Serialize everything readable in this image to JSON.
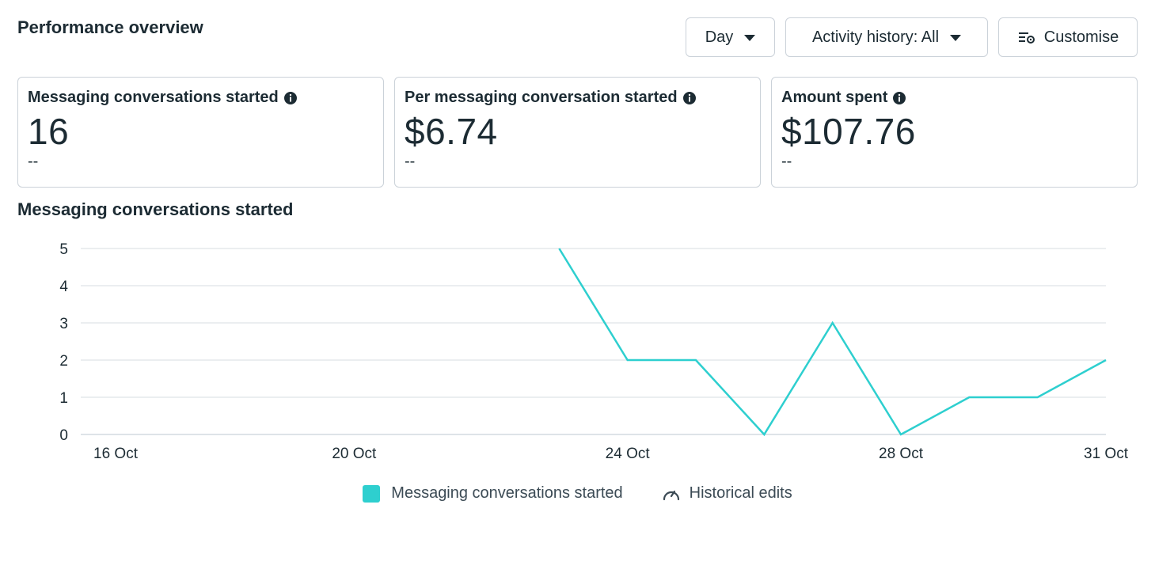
{
  "header": {
    "title": "Performance overview",
    "day_label": "Day",
    "activity_label": "Activity history: All",
    "customise_label": "Customise"
  },
  "cards": [
    {
      "label": "Messaging conversations started",
      "value": "16",
      "delta": "--"
    },
    {
      "label": "Per messaging conversation started",
      "value": "$6.74",
      "delta": "--"
    },
    {
      "label": "Amount spent",
      "value": "$107.76",
      "delta": "--"
    }
  ],
  "chart_title": "Messaging conversations started",
  "legend": {
    "series_label": "Messaging conversations started",
    "historical_label": "Historical edits"
  },
  "colors": {
    "series": "#2ecfcf",
    "grid": "#dfe3e8",
    "text": "#1c2b33"
  },
  "chart_data": {
    "type": "line",
    "title": "",
    "xlabel": "",
    "ylabel": "",
    "ylim": [
      0,
      5
    ],
    "yticks": [
      0,
      1,
      2,
      3,
      4,
      5
    ],
    "xticks": [
      {
        "day": 16,
        "label": "16 Oct"
      },
      {
        "day": 20,
        "label": "20 Oct"
      },
      {
        "day": 24,
        "label": "24 Oct"
      },
      {
        "day": 28,
        "label": "28 Oct"
      },
      {
        "day": 31,
        "label": "31 Oct"
      }
    ],
    "xlim": [
      16,
      31
    ],
    "grid": true,
    "legend_position": "bottom-center",
    "series": [
      {
        "name": "Messaging conversations started",
        "x": [
          23,
          24,
          25,
          26,
          27,
          28,
          29,
          30,
          31
        ],
        "values": [
          5,
          2,
          2,
          0,
          3,
          0,
          1,
          1,
          2
        ]
      }
    ]
  }
}
